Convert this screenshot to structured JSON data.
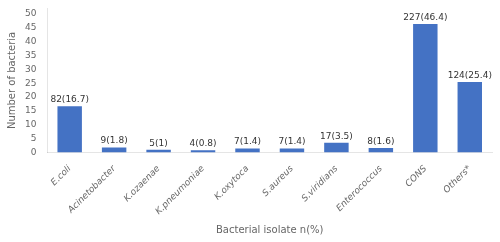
{
  "chart_data": {
    "type": "bar",
    "categories": [
      "E.coli",
      "Acinetobacter",
      "K.ozaenae",
      "K.pneumoniae",
      "K.oxytoca",
      "S.aureus",
      "S.viridians",
      "Enterococcus",
      "CONS",
      "Others*"
    ],
    "values": [
      16.7,
      1.8,
      1.0,
      0.8,
      1.4,
      1.4,
      3.5,
      1.6,
      46.4,
      25.4
    ],
    "value_labels": [
      "82(16.7)",
      "9(1.8)",
      "5(1)",
      "4(0.8)",
      "7(1.4)",
      "7(1.4)",
      "17(3.5)",
      "8(1.6)",
      "227(46.4)",
      "124(25.4)"
    ],
    "data_labels": true,
    "color": "#4472c4",
    "xlabel": "Bacterial isolate n(%)",
    "ylabel": "Number of bacteria",
    "ylim": [
      0,
      52
    ],
    "yticks": [
      0,
      5,
      10,
      15,
      20,
      25,
      30,
      35,
      40,
      45,
      50
    ],
    "grid": false
  }
}
